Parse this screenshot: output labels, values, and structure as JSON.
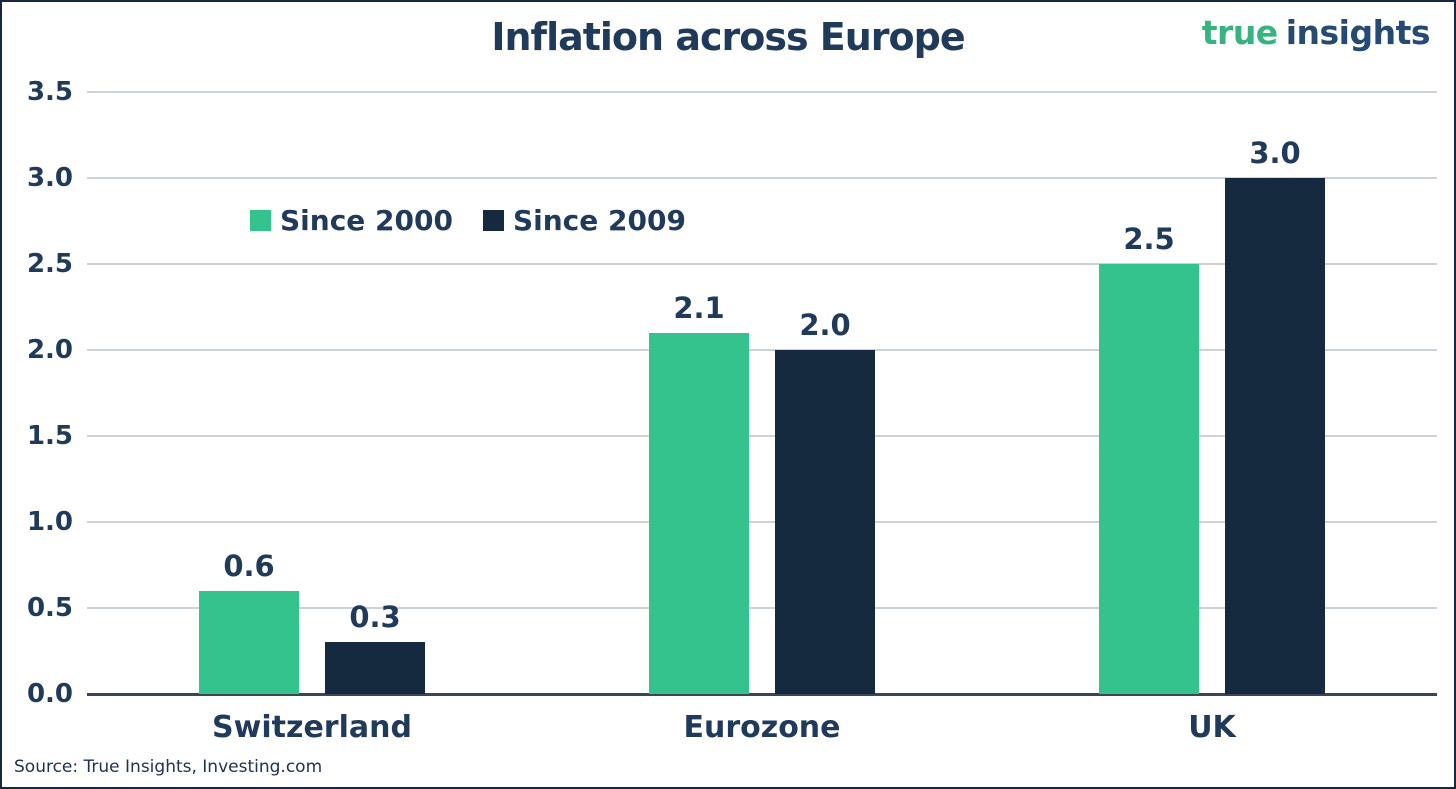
{
  "header": {
    "title": "Inflation across Europe",
    "logo": {
      "part1": "true",
      "part2": "insights"
    }
  },
  "footer": {
    "source": "Source: True Insights, Investing.com"
  },
  "colors": {
    "series_green": "#34c38c",
    "series_navy": "#15293f",
    "text_navy": "#203a5c",
    "logo_green": "#36b37e",
    "logo_navy": "#254a73",
    "gridline": "#ccd3d8",
    "baseline": "#3a4658",
    "border": "#16283f",
    "background": "#ffffff"
  },
  "chart_data": {
    "type": "bar",
    "title": "Inflation across Europe",
    "categories": [
      "Switzerland",
      "Eurozone",
      "UK"
    ],
    "series": [
      {
        "name": "Since 2000",
        "color_key": "series_green",
        "values": [
          0.6,
          2.1,
          2.5
        ],
        "labels": [
          "0.6",
          "2.1",
          "2.5"
        ]
      },
      {
        "name": "Since 2009",
        "color_key": "series_navy",
        "values": [
          0.3,
          2.0,
          3.0
        ],
        "labels": [
          "0.3",
          "2.0",
          "3.0"
        ]
      }
    ],
    "y_ticks": [
      "3.5",
      "3.0",
      "2.5",
      "2.0",
      "1.5",
      "1.0",
      "0.5",
      "0.0"
    ],
    "ylim": [
      0,
      3.5
    ],
    "xlabel": "",
    "ylabel": "",
    "grid": true,
    "legend_position": "upper-left-inside"
  }
}
